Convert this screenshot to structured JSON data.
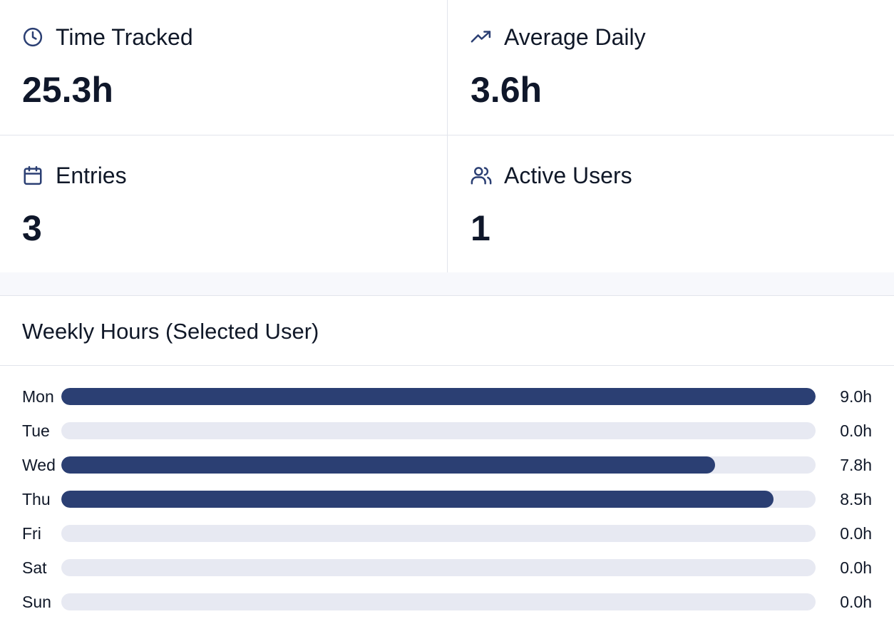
{
  "stats": [
    {
      "label": "Time Tracked",
      "value": "25.3h",
      "icon": "clock-icon"
    },
    {
      "label": "Average Daily",
      "value": "3.6h",
      "icon": "trending-up-icon"
    },
    {
      "label": "Entries",
      "value": "3",
      "icon": "calendar-icon"
    },
    {
      "label": "Active Users",
      "value": "1",
      "icon": "users-icon"
    }
  ],
  "colors": {
    "bar_fill": "#2b3f73",
    "bar_track": "#e7e9f2",
    "icon": "#2b3f73"
  },
  "chart": {
    "title": "Weekly Hours (Selected User)"
  },
  "chart_data": {
    "type": "bar",
    "orientation": "horizontal",
    "categories": [
      "Mon",
      "Tue",
      "Wed",
      "Thu",
      "Fri",
      "Sat",
      "Sun"
    ],
    "values": [
      9.0,
      0.0,
      7.8,
      8.5,
      0.0,
      0.0,
      0.0
    ],
    "value_labels": [
      "9.0h",
      "0.0h",
      "7.8h",
      "8.5h",
      "0.0h",
      "0.0h",
      "0.0h"
    ],
    "xlim": [
      0,
      9.0
    ],
    "title": "Weekly Hours (Selected User)",
    "grid": false
  }
}
